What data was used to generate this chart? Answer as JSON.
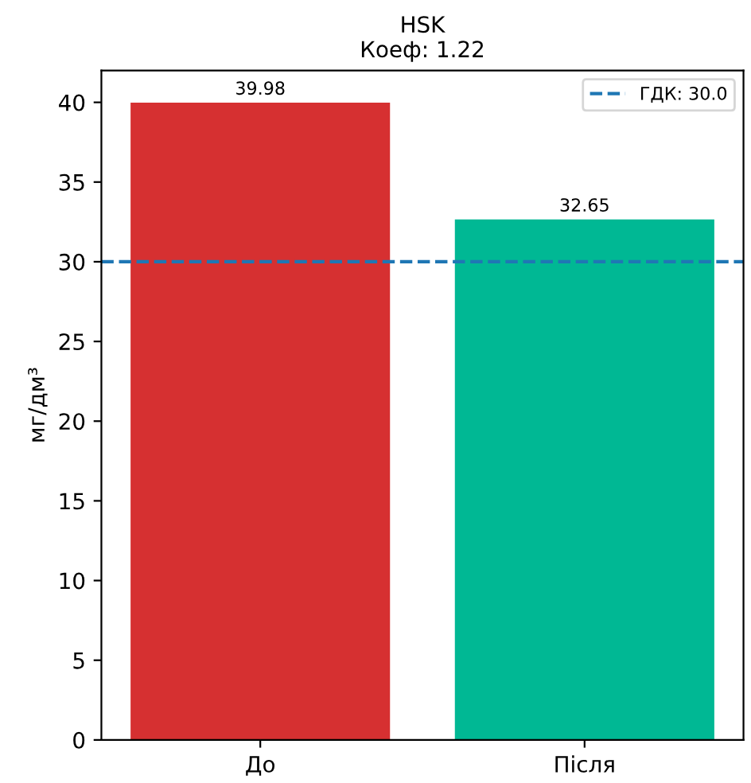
{
  "chart_data": {
    "type": "bar",
    "title": "HSK",
    "subtitle": "Коеф: 1.22",
    "ylabel": "мг/дм³",
    "categories": [
      "До",
      "Після"
    ],
    "values": [
      39.98,
      32.65
    ],
    "colors": [
      "#d63031",
      "#00b894"
    ],
    "ylim": [
      0,
      42
    ],
    "yticks": [
      0,
      5,
      10,
      15,
      20,
      25,
      30,
      35,
      40
    ],
    "data_labels": true,
    "grid": false,
    "legend": "top right",
    "ref_lines": [
      {
        "axis": "y",
        "value": 30.0,
        "label": "ГДК: 30.0",
        "color": "#1f77b4",
        "line_style": "dashed"
      }
    ]
  }
}
